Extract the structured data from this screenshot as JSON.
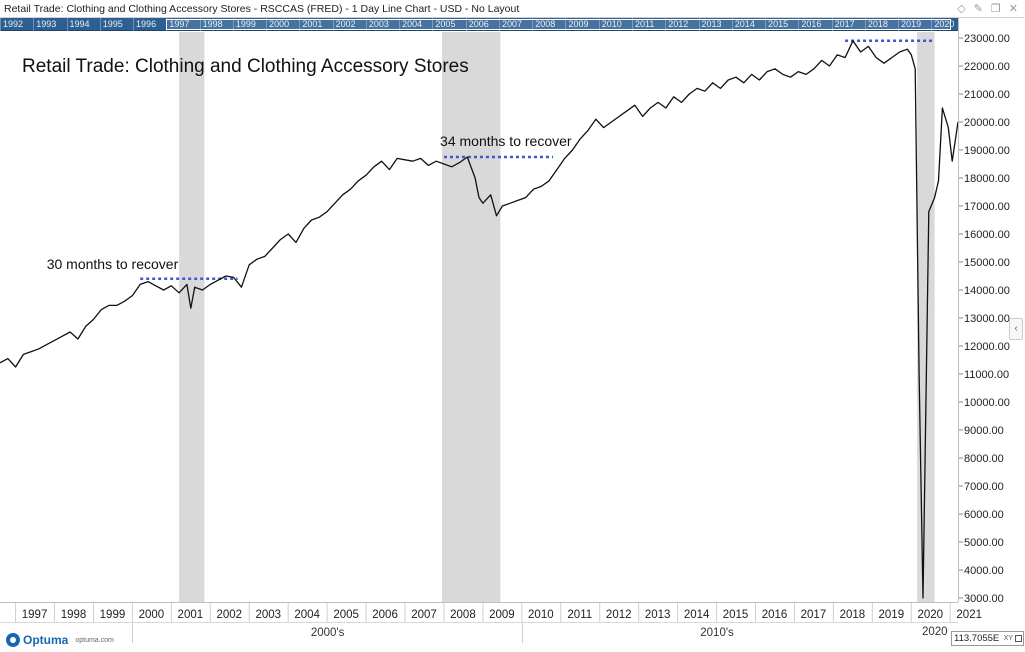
{
  "window": {
    "title": "Retail Trade: Clothing and Clothing Accessory Stores - RSCCAS (FRED) - 1 Day Line Chart - USD - No Layout"
  },
  "top_year_ruler": [
    "1992",
    "1993",
    "1994",
    "1995",
    "1996",
    "1997",
    "1998",
    "1999",
    "2000",
    "2001",
    "2002",
    "2003",
    "2004",
    "2005",
    "2006",
    "2007",
    "2008",
    "2009",
    "2010",
    "2011",
    "2012",
    "2013",
    "2014",
    "2015",
    "2016",
    "2017",
    "2018",
    "2019",
    "2020"
  ],
  "decades": [
    "2000's",
    "2010's",
    "2020"
  ],
  "logo": {
    "name": "Optuma",
    "site": "optuma.com"
  },
  "crosshair_readout": {
    "value": "113.7055E",
    "unit_label": "XY"
  },
  "colors": {
    "line": "#111111",
    "recession_shade": "#d9d9d9",
    "dotted_level": "#3a5bd0",
    "ruler_bg": "#2e5f91"
  },
  "icons": [
    "diamond-icon",
    "pin-icon",
    "copy-icon",
    "close-icon",
    "collapse-panel-icon"
  ],
  "chart_data": {
    "type": "line",
    "title": "Retail Trade: Clothing and Clothing Accessory Stores",
    "xlabel": "",
    "ylabel": "",
    "x_ticks": [
      "1997",
      "1998",
      "1999",
      "2000",
      "2001",
      "2002",
      "2003",
      "2004",
      "2005",
      "2006",
      "2007",
      "2008",
      "2009",
      "2010",
      "2011",
      "2012",
      "2013",
      "2014",
      "2015",
      "2016",
      "2017",
      "2018",
      "2019",
      "2020",
      "2021"
    ],
    "y_ticks": [
      "3000.00",
      "4000.00",
      "5000.00",
      "6000.00",
      "7000.00",
      "8000.00",
      "9000.00",
      "10000.00",
      "11000.00",
      "12000.00",
      "13000.00",
      "14000.00",
      "15000.00",
      "16000.00",
      "17000.00",
      "18000.00",
      "19000.00",
      "20000.00",
      "21000.00",
      "22000.00",
      "23000.00"
    ],
    "xlim": [
      1996.6,
      2021.2
    ],
    "ylim": [
      3000,
      23000
    ],
    "grid": false,
    "recession_shading": [
      {
        "start": 2001.2,
        "end": 2001.85
      },
      {
        "start": 2007.95,
        "end": 2009.45
      },
      {
        "start": 2020.15,
        "end": 2020.6
      }
    ],
    "annotations": [
      {
        "text": "30 months to recover",
        "x": 1997.8,
        "y": 14750
      },
      {
        "text": "34 months to recover",
        "x": 2007.9,
        "y": 19150
      }
    ],
    "reference_levels": [
      {
        "x_start": 2000.2,
        "x_end": 2002.7,
        "y": 14400
      },
      {
        "x_start": 2008.0,
        "x_end": 2010.8,
        "y": 18750
      },
      {
        "x_start": 2018.3,
        "x_end": 2020.6,
        "y": 22900
      }
    ],
    "series": [
      {
        "values": [
          [
            1996.6,
            11400
          ],
          [
            1996.8,
            11550
          ],
          [
            1997.0,
            11250
          ],
          [
            1997.2,
            11700
          ],
          [
            1997.4,
            11800
          ],
          [
            1997.6,
            11900
          ],
          [
            1997.8,
            12050
          ],
          [
            1998.0,
            12200
          ],
          [
            1998.2,
            12350
          ],
          [
            1998.4,
            12500
          ],
          [
            1998.6,
            12250
          ],
          [
            1998.8,
            12700
          ],
          [
            1999.0,
            12950
          ],
          [
            1999.2,
            13300
          ],
          [
            1999.4,
            13450
          ],
          [
            1999.6,
            13450
          ],
          [
            1999.8,
            13600
          ],
          [
            2000.0,
            13800
          ],
          [
            2000.2,
            14200
          ],
          [
            2000.4,
            14300
          ],
          [
            2000.6,
            14150
          ],
          [
            2000.8,
            14000
          ],
          [
            2001.0,
            14150
          ],
          [
            2001.2,
            13900
          ],
          [
            2001.4,
            14200
          ],
          [
            2001.5,
            13350
          ],
          [
            2001.6,
            14100
          ],
          [
            2001.8,
            14000
          ],
          [
            2002.0,
            14200
          ],
          [
            2002.2,
            14350
          ],
          [
            2002.4,
            14500
          ],
          [
            2002.6,
            14450
          ],
          [
            2002.8,
            14100
          ],
          [
            2003.0,
            14900
          ],
          [
            2003.2,
            15100
          ],
          [
            2003.4,
            15200
          ],
          [
            2003.6,
            15500
          ],
          [
            2003.8,
            15800
          ],
          [
            2004.0,
            16000
          ],
          [
            2004.2,
            15700
          ],
          [
            2004.4,
            16200
          ],
          [
            2004.6,
            16500
          ],
          [
            2004.8,
            16600
          ],
          [
            2005.0,
            16800
          ],
          [
            2005.2,
            17100
          ],
          [
            2005.4,
            17400
          ],
          [
            2005.6,
            17600
          ],
          [
            2005.8,
            17900
          ],
          [
            2006.0,
            18100
          ],
          [
            2006.2,
            18400
          ],
          [
            2006.4,
            18600
          ],
          [
            2006.6,
            18300
          ],
          [
            2006.8,
            18700
          ],
          [
            2007.0,
            18650
          ],
          [
            2007.2,
            18600
          ],
          [
            2007.4,
            18700
          ],
          [
            2007.6,
            18450
          ],
          [
            2007.8,
            18600
          ],
          [
            2008.0,
            18500
          ],
          [
            2008.2,
            18400
          ],
          [
            2008.4,
            18550
          ],
          [
            2008.6,
            18750
          ],
          [
            2008.8,
            18000
          ],
          [
            2008.9,
            17300
          ],
          [
            2009.0,
            17100
          ],
          [
            2009.2,
            17400
          ],
          [
            2009.35,
            16650
          ],
          [
            2009.5,
            17000
          ],
          [
            2009.7,
            17100
          ],
          [
            2009.9,
            17200
          ],
          [
            2010.1,
            17300
          ],
          [
            2010.3,
            17600
          ],
          [
            2010.5,
            17700
          ],
          [
            2010.7,
            17900
          ],
          [
            2010.9,
            18300
          ],
          [
            2011.1,
            18700
          ],
          [
            2011.3,
            19000
          ],
          [
            2011.5,
            19400
          ],
          [
            2011.7,
            19700
          ],
          [
            2011.9,
            20100
          ],
          [
            2012.1,
            19800
          ],
          [
            2012.3,
            20000
          ],
          [
            2012.5,
            20200
          ],
          [
            2012.7,
            20400
          ],
          [
            2012.9,
            20600
          ],
          [
            2013.1,
            20200
          ],
          [
            2013.3,
            20500
          ],
          [
            2013.5,
            20700
          ],
          [
            2013.7,
            20500
          ],
          [
            2013.9,
            20900
          ],
          [
            2014.1,
            20700
          ],
          [
            2014.3,
            21000
          ],
          [
            2014.5,
            21200
          ],
          [
            2014.7,
            21100
          ],
          [
            2014.9,
            21400
          ],
          [
            2015.1,
            21200
          ],
          [
            2015.3,
            21500
          ],
          [
            2015.5,
            21600
          ],
          [
            2015.7,
            21400
          ],
          [
            2015.9,
            21700
          ],
          [
            2016.1,
            21500
          ],
          [
            2016.3,
            21800
          ],
          [
            2016.5,
            21900
          ],
          [
            2016.7,
            21700
          ],
          [
            2016.9,
            21600
          ],
          [
            2017.1,
            21800
          ],
          [
            2017.3,
            21700
          ],
          [
            2017.5,
            21900
          ],
          [
            2017.7,
            22200
          ],
          [
            2017.9,
            22000
          ],
          [
            2018.1,
            22400
          ],
          [
            2018.3,
            22300
          ],
          [
            2018.5,
            22900
          ],
          [
            2018.7,
            22500
          ],
          [
            2018.9,
            22700
          ],
          [
            2019.1,
            22300
          ],
          [
            2019.3,
            22100
          ],
          [
            2019.5,
            22300
          ],
          [
            2019.7,
            22500
          ],
          [
            2019.9,
            22600
          ],
          [
            2020.0,
            22400
          ],
          [
            2020.1,
            21900
          ],
          [
            2020.2,
            11000
          ],
          [
            2020.3,
            3000
          ],
          [
            2020.45,
            16800
          ],
          [
            2020.6,
            17300
          ],
          [
            2020.7,
            17900
          ],
          [
            2020.8,
            20500
          ],
          [
            2020.95,
            19800
          ],
          [
            2021.05,
            18600
          ],
          [
            2021.2,
            20000
          ]
        ]
      }
    ]
  }
}
